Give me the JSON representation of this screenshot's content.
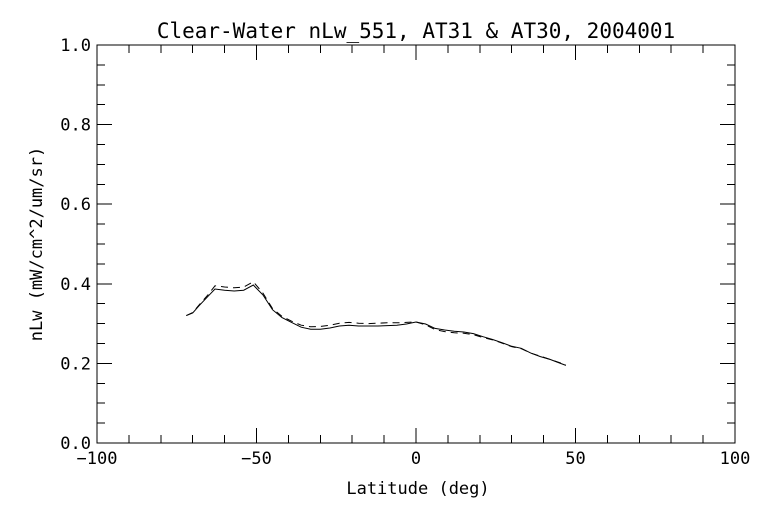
{
  "window": {
    "background": "#ffffff"
  },
  "chart_data": {
    "type": "line",
    "title": "Clear-Water nLw_551, AT31 & AT30, 2004001",
    "xlabel": "Latitude (deg)",
    "ylabel": "nLw (mW/cm^2/um/sr)",
    "xlim": [
      -100,
      100
    ],
    "ylim": [
      0.0,
      1.0
    ],
    "grid": false,
    "legend": "none",
    "frame_box": true,
    "background": "#ffffff",
    "line_color": "#000000",
    "x_major_ticks": [
      -100,
      -50,
      0,
      50,
      100
    ],
    "x_tick_labels": [
      "−100",
      "−50",
      "0",
      "50",
      "100"
    ],
    "x_minor_interval": 10,
    "y_major_ticks": [
      0.0,
      0.2,
      0.4,
      0.6,
      0.8,
      1.0
    ],
    "y_tick_labels": [
      "0.0",
      "0.2",
      "0.4",
      "0.6",
      "0.8",
      "1.0"
    ],
    "y_minor_interval": 0.05,
    "x": [
      -72,
      -70,
      -68,
      -65,
      -63,
      -60,
      -57,
      -54,
      -51,
      -48,
      -45,
      -42,
      -39,
      -36,
      -33,
      -30,
      -27,
      -24,
      -21,
      -18,
      -15,
      -12,
      -9,
      -6,
      -3,
      0,
      3,
      6,
      9,
      12,
      15,
      18,
      21,
      24,
      27,
      30,
      33,
      36,
      39,
      42,
      45,
      47
    ],
    "series": [
      {
        "name": "AT31",
        "line_style": "solid",
        "values": [
          0.32,
          0.327,
          0.345,
          0.37,
          0.387,
          0.384,
          0.382,
          0.384,
          0.397,
          0.372,
          0.335,
          0.315,
          0.303,
          0.291,
          0.286,
          0.286,
          0.289,
          0.294,
          0.296,
          0.294,
          0.294,
          0.294,
          0.295,
          0.296,
          0.299,
          0.304,
          0.299,
          0.288,
          0.284,
          0.281,
          0.279,
          0.275,
          0.267,
          0.26,
          0.252,
          0.243,
          0.238,
          0.226,
          0.217,
          0.21,
          0.201,
          0.195
        ]
      },
      {
        "name": "AT30",
        "line_style": "dashed",
        "values": [
          0.32,
          0.328,
          0.347,
          0.374,
          0.395,
          0.392,
          0.39,
          0.392,
          0.405,
          0.377,
          0.338,
          0.318,
          0.306,
          0.296,
          0.292,
          0.293,
          0.296,
          0.301,
          0.303,
          0.301,
          0.3,
          0.301,
          0.302,
          0.302,
          0.303,
          0.304,
          0.297,
          0.285,
          0.28,
          0.277,
          0.276,
          0.272,
          0.265,
          0.259,
          0.251,
          0.242,
          0.237,
          0.226,
          0.218,
          0.21,
          0.202,
          0.196
        ]
      }
    ]
  }
}
